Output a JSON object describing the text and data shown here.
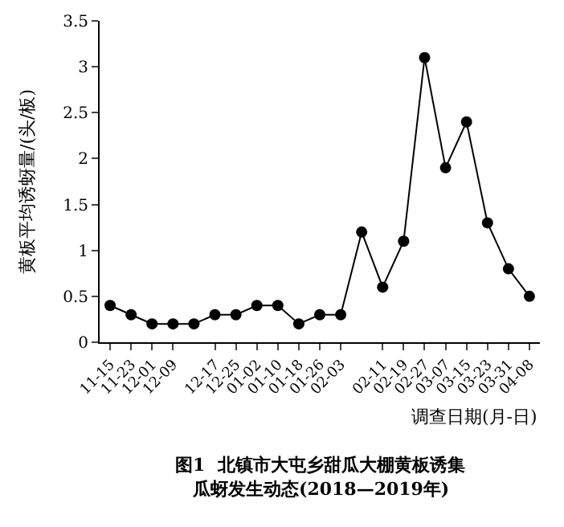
{
  "chart_data": {
    "type": "line",
    "title": "图1  北镇市大屯乡甜瓜大棚黄板诱集",
    "subtitle": "瓜蚜发生动态(2018—2019年)",
    "xlabel": "调查日期(月-日)",
    "ylabel": "黄板平均诱蚜量/(头/板)",
    "categories": [
      "11-15",
      "11-23",
      "12-01",
      "12-09",
      null,
      "12-17",
      "12-25",
      "01-02",
      "01-10",
      "01-18",
      "01-26",
      "02-03",
      null,
      "02-11",
      "02-19",
      "02-27",
      "03-07",
      "03-15",
      "03-23",
      "03-31",
      "04-08"
    ],
    "series": [
      {
        "color": "#000000",
        "values": [
          0.4,
          0.3,
          0.2,
          0.2,
          0.2,
          0.3,
          0.3,
          0.4,
          0.4,
          0.2,
          0.3,
          0.3,
          1.2,
          0.6,
          1.1,
          3.1,
          1.9,
          2.4,
          1.3,
          0.8,
          0.5
        ]
      }
    ],
    "ylim": [
      0,
      3.5
    ],
    "yticks": [
      0,
      0.5,
      1,
      1.5,
      2,
      2.5,
      3,
      3.5
    ],
    "marker": "circle",
    "line_style": "solid",
    "legend": false
  }
}
